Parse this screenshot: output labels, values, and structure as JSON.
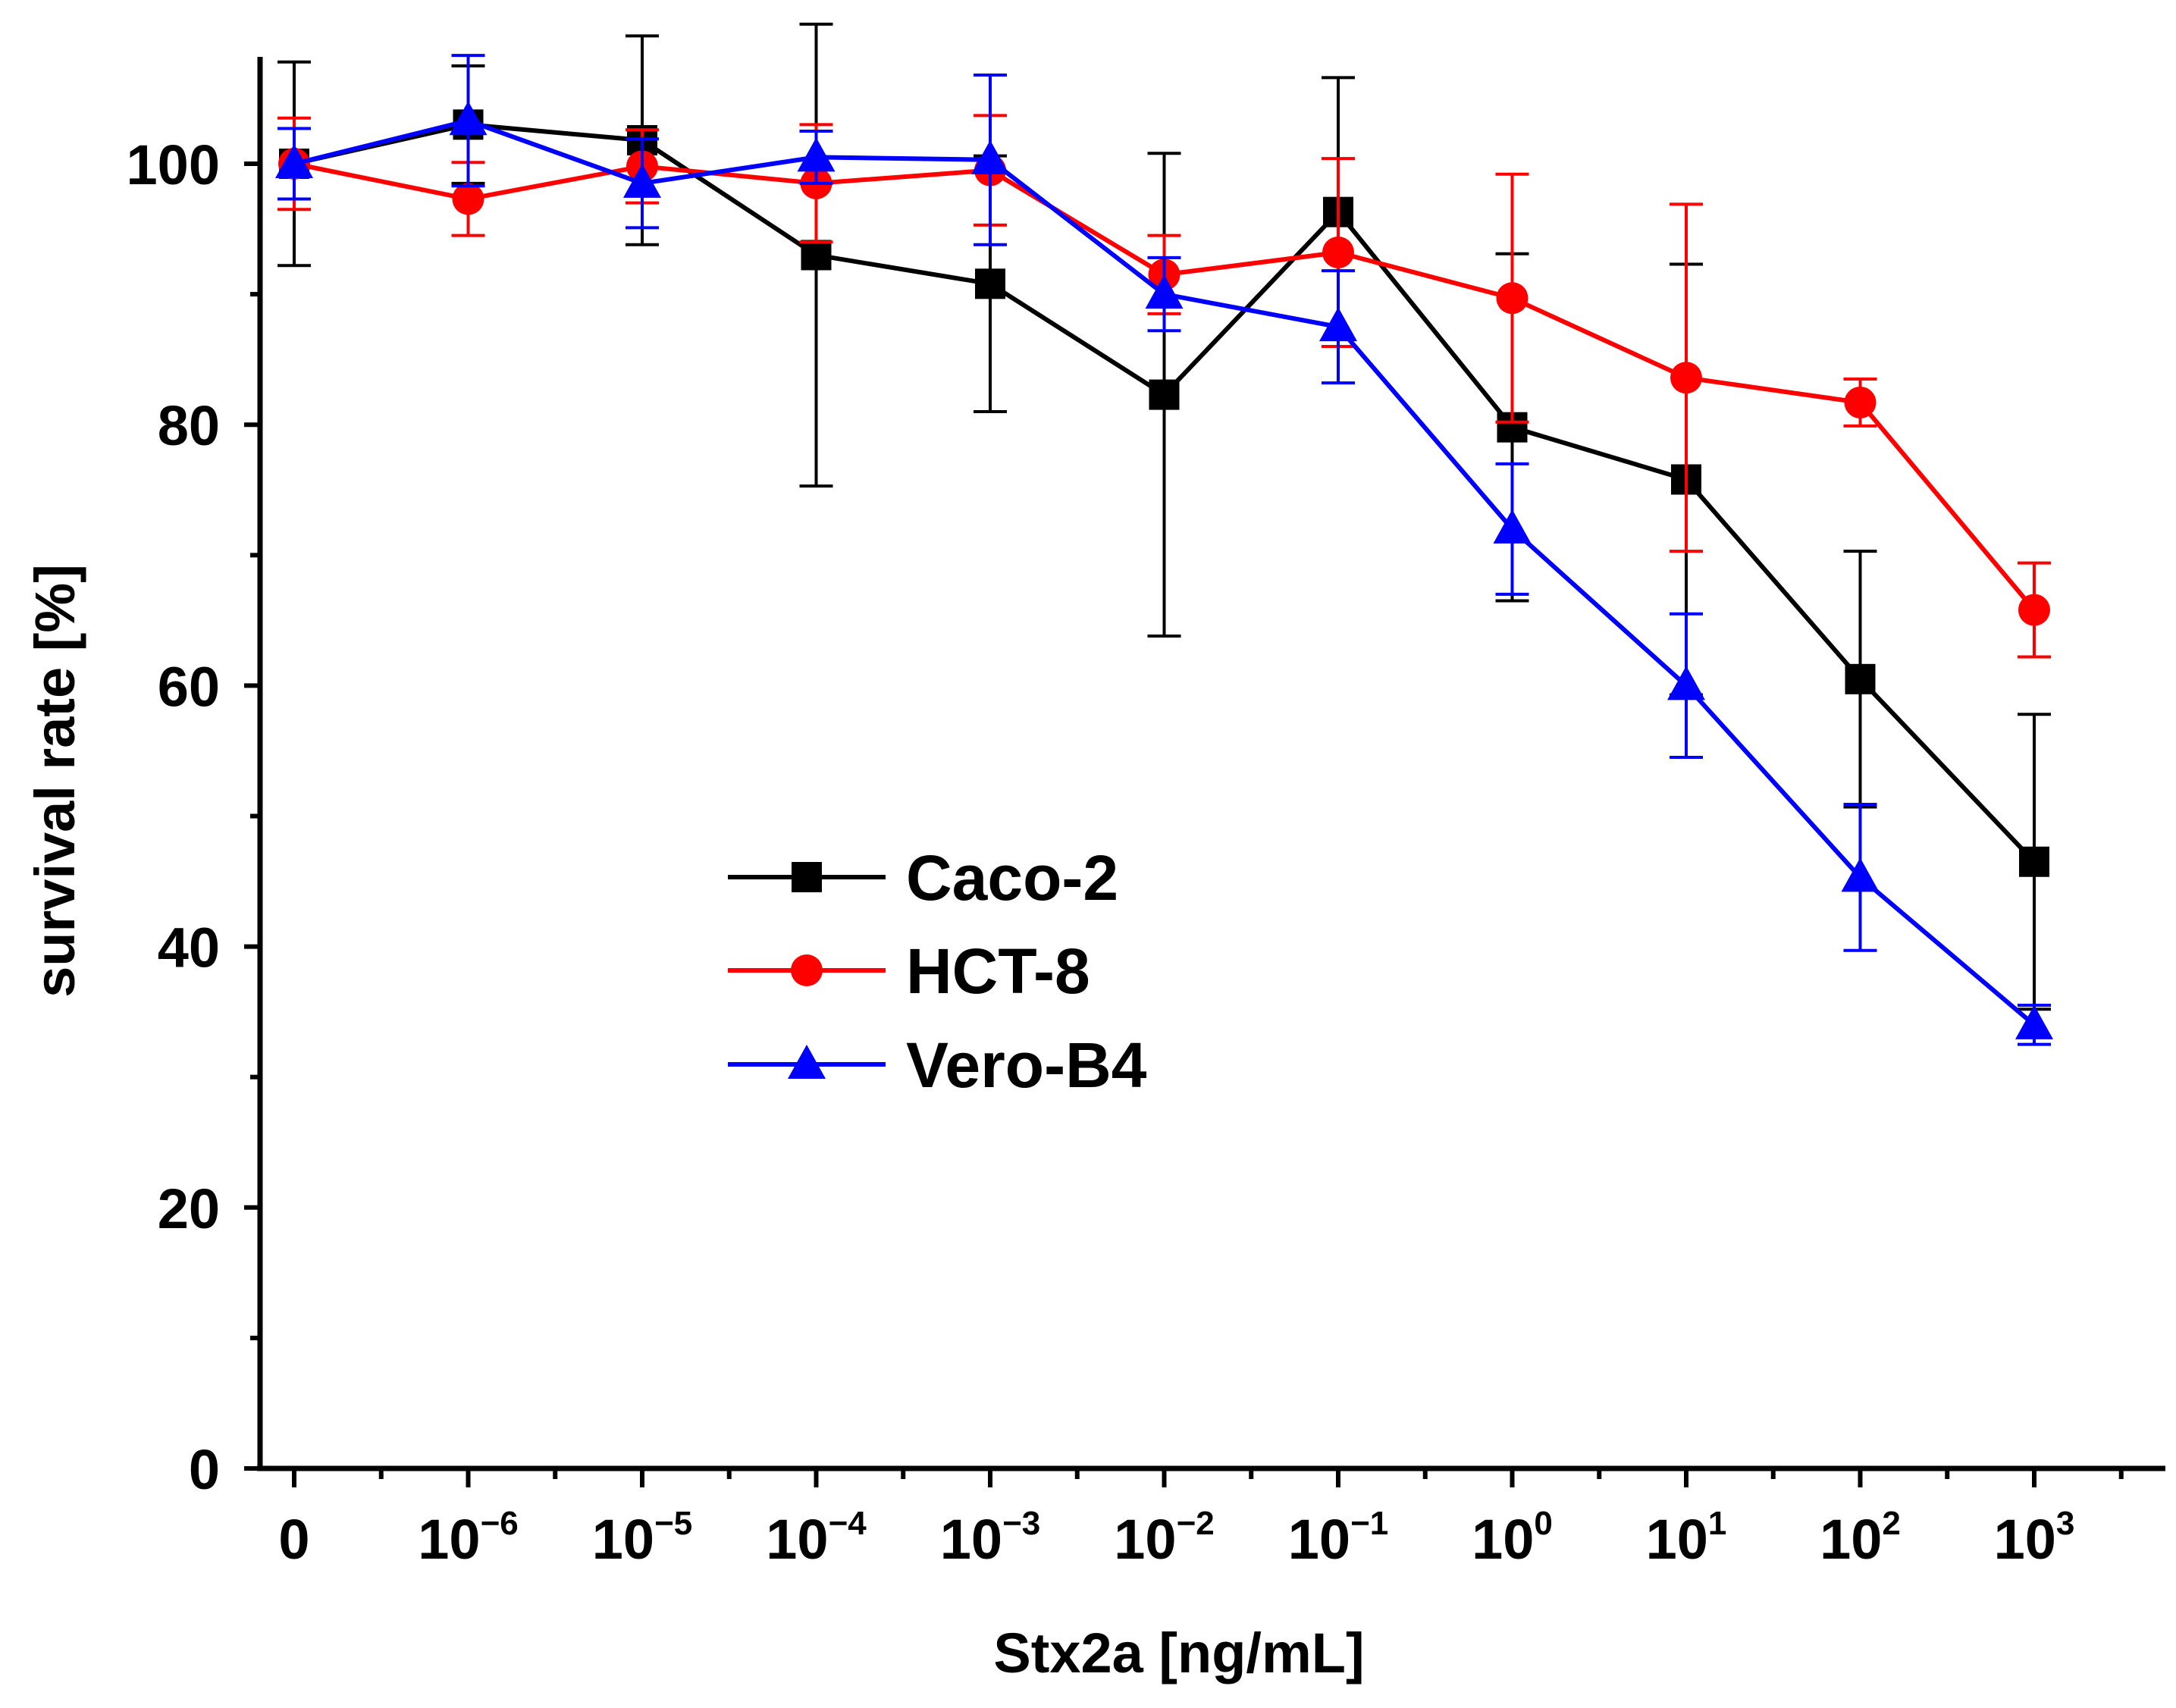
{
  "chart_data": {
    "type": "line",
    "title": "",
    "xlabel": "Stx2a [ng/mL]",
    "ylabel": "survival rate [%]",
    "ylim": [
      0,
      108
    ],
    "yticks": [
      0,
      20,
      40,
      60,
      80,
      100
    ],
    "categories": [
      {
        "base": "0",
        "exp": ""
      },
      {
        "base": "10",
        "exp": "−6"
      },
      {
        "base": "10",
        "exp": "−5"
      },
      {
        "base": "10",
        "exp": "−4"
      },
      {
        "base": "10",
        "exp": "−3"
      },
      {
        "base": "10",
        "exp": "−2"
      },
      {
        "base": "10",
        "exp": "−1"
      },
      {
        "base": "10",
        "exp": "0"
      },
      {
        "base": "10",
        "exp": "1"
      },
      {
        "base": "10",
        "exp": "2"
      },
      {
        "base": "10",
        "exp": "3"
      }
    ],
    "legend_position": "center-left",
    "series": [
      {
        "name": "Caco-2",
        "color": "#000000",
        "marker": "square",
        "values": [
          100,
          103,
          101.8,
          93,
          90.8,
          82.3,
          96.3,
          79.8,
          75.8,
          60.5,
          46.5
        ],
        "errors": [
          7.8,
          4.5,
          8,
          17.7,
          9.8,
          18.5,
          10.3,
          13.3,
          16.5,
          9.8,
          11.3
        ]
      },
      {
        "name": "HCT-8",
        "color": "#ff0000",
        "marker": "circle",
        "values": [
          100,
          97.3,
          99.8,
          98.5,
          99.5,
          91.5,
          93.2,
          89.7,
          83.6,
          81.7,
          65.8
        ],
        "errors": [
          3.5,
          2.8,
          2.8,
          4.5,
          4.2,
          3,
          7.2,
          9.5,
          13.3,
          1.8,
          3.6
        ]
      },
      {
        "name": "Vero-B4",
        "color": "#0000ff",
        "marker": "triangle",
        "values": [
          100,
          103.3,
          98.5,
          100.5,
          100.3,
          90,
          87.5,
          72,
          60,
          45.3,
          34
        ],
        "errors": [
          2.7,
          5,
          3.4,
          2,
          6.5,
          2.8,
          4.3,
          5,
          5.5,
          5.6,
          1.5
        ]
      }
    ]
  }
}
